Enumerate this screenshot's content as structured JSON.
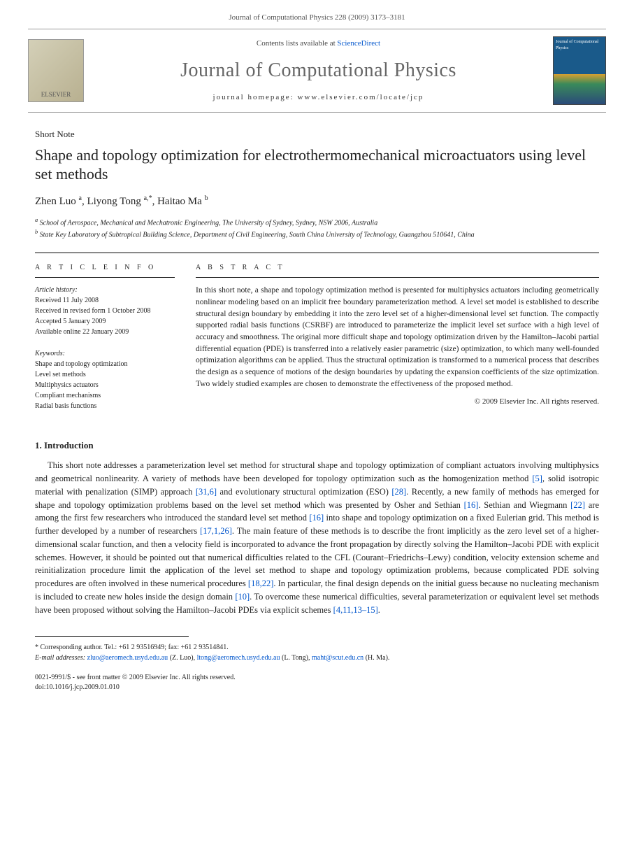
{
  "header": {
    "citation": "Journal of Computational Physics 228 (2009) 3173–3181"
  },
  "banner": {
    "elsevier_label": "ELSEVIER",
    "contents_prefix": "Contents lists available at ",
    "contents_link": "ScienceDirect",
    "journal_name": "Journal of Computational Physics",
    "homepage_prefix": "journal homepage: ",
    "homepage_url": "www.elsevier.com/locate/jcp",
    "cover_text": "Journal of Computational Physics"
  },
  "article": {
    "type": "Short Note",
    "title": "Shape and topology optimization for electrothermomechanical microactuators using level set methods",
    "authors_html": "Zhen Luo <sup>a</sup>, Liyong Tong <sup>a,*</sup>, Haitao Ma <sup>b</sup>",
    "affiliations": {
      "a": "School of Aerospace, Mechanical and Mechatronic Engineering, The University of Sydney, Sydney, NSW 2006, Australia",
      "b": "State Key Laboratory of Subtropical Building Science, Department of Civil Engineering, South China University of Technology, Guangzhou 510641, China"
    }
  },
  "info": {
    "heading": "A R T I C L E   I N F O",
    "history_label": "Article history:",
    "history": [
      "Received 11 July 2008",
      "Received in revised form 1 October 2008",
      "Accepted 5 January 2009",
      "Available online 22 January 2009"
    ],
    "keywords_label": "Keywords:",
    "keywords": [
      "Shape and topology optimization",
      "Level set methods",
      "Multiphysics actuators",
      "Compliant mechanisms",
      "Radial basis functions"
    ]
  },
  "abstract": {
    "heading": "A B S T R A C T",
    "text": "In this short note, a shape and topology optimization method is presented for multiphysics actuators including geometrically nonlinear modeling based on an implicit free boundary parameterization method. A level set model is established to describe structural design boundary by embedding it into the zero level set of a higher-dimensional level set function. The compactly supported radial basis functions (CSRBF) are introduced to parameterize the implicit level set surface with a high level of accuracy and smoothness. The original more difficult shape and topology optimization driven by the Hamilton–Jacobi partial differential equation (PDE) is transferred into a relatively easier parametric (size) optimization, to which many well-founded optimization algorithms can be applied. Thus the structural optimization is transformed to a numerical process that describes the design as a sequence of motions of the design boundaries by updating the expansion coefficients of the size optimization. Two widely studied examples are chosen to demonstrate the effectiveness of the proposed method.",
    "copyright": "© 2009 Elsevier Inc. All rights reserved."
  },
  "section1": {
    "title": "1. Introduction",
    "text_parts": [
      "This short note addresses a parameterization level set method for structural shape and topology optimization of compliant actuators involving multiphysics and geometrical nonlinearity. A variety of methods have been developed for topology optimization such as the homogenization method ",
      "[5]",
      ", solid isotropic material with penalization (SIMP) approach ",
      "[31,6]",
      " and evolutionary structural optimization (ESO) ",
      "[28]",
      ". Recently, a new family of methods has emerged for shape and topology optimization problems based on the level set method which was presented by Osher and Sethian ",
      "[16]",
      ". Sethian and Wiegmann ",
      "[22]",
      " are among the first few researchers who introduced the standard level set method ",
      "[16]",
      " into shape and topology optimization on a fixed Eulerian grid. This method is further developed by a number of researchers ",
      "[17,1,26]",
      ". The main feature of these methods is to describe the front implicitly as the zero level set of a higher-dimensional scalar function, and then a velocity field is incorporated to advance the front propagation by directly solving the Hamilton–Jacobi PDE with explicit schemes. However, it should be pointed out that numerical difficulties related to the CFL (Courant–Friedrichs–Lewy) condition, velocity extension scheme and reinitialization procedure limit the application of the level set method to shape and topology optimization problems, because complicated PDE solving procedures are often involved in these numerical procedures ",
      "[18,22]",
      ". In particular, the final design depends on the initial guess because no nucleating mechanism is included to create new holes inside the design domain ",
      "[10]",
      ". To overcome these numerical difficulties, several parameterization or equivalent level set methods have been proposed without solving the Hamilton–Jacobi PDEs via explicit schemes ",
      "[4,11,13–15]",
      "."
    ]
  },
  "footnote": {
    "corr": "* Corresponding author. Tel.: +61 2 93516949; fax: +61 2 93514841.",
    "email_label": "E-mail addresses: ",
    "emails": [
      {
        "addr": "zluo@aeromech.usyd.edu.au",
        "who": " (Z. Luo), "
      },
      {
        "addr": "ltong@aeromech.usyd.edu.au",
        "who": " (L. Tong), "
      },
      {
        "addr": "maht@scut.edu.cn",
        "who": " (H. Ma)."
      }
    ]
  },
  "bottom": {
    "line1": "0021-9991/$ - see front matter © 2009 Elsevier Inc. All rights reserved.",
    "line2": "doi:10.1016/j.jcp.2009.01.010"
  },
  "colors": {
    "link": "#0055cc",
    "text": "#222222",
    "rule": "#000000",
    "muted": "#666666"
  }
}
